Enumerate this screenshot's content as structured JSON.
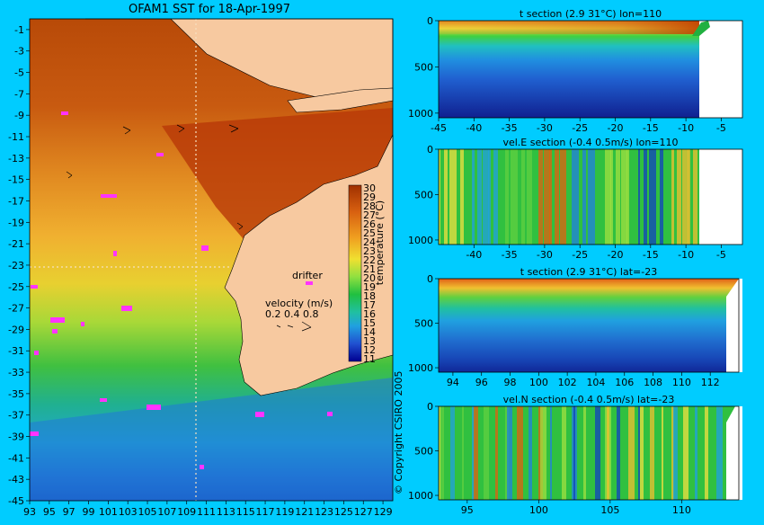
{
  "chart_data": [
    {
      "type": "heatmap",
      "title": "OFAM1 SST for 18-Apr-1997",
      "xticks": [
        "93",
        "95",
        "97",
        "99",
        "101",
        "103",
        "105",
        "107",
        "109",
        "111",
        "113",
        "115",
        "117",
        "119",
        "121",
        "123",
        "125",
        "127",
        "129"
      ],
      "yticks": [
        "-1",
        "-3",
        "-5",
        "-7",
        "-9",
        "-11",
        "-13",
        "-15",
        "-17",
        "-19",
        "-21",
        "-23",
        "-25",
        "-27",
        "-29",
        "-31",
        "-33",
        "-35",
        "-37",
        "-39",
        "-41",
        "-43",
        "-45"
      ],
      "xlim": [
        93,
        130
      ],
      "ylim": [
        -45,
        0
      ],
      "colorbar": {
        "label": "temperature (°C)",
        "ticks": [
          "30",
          "29",
          "28",
          "27",
          "26",
          "25",
          "24",
          "23",
          "22",
          "21",
          "20",
          "19",
          "18",
          "17",
          "16",
          "15",
          "14",
          "13",
          "12",
          "11"
        ],
        "range": [
          11,
          30
        ]
      },
      "section_lines": {
        "lon": 110,
        "lat": -23
      },
      "velocity_legend": {
        "label": "velocity (m/s)",
        "scale": "0.2 0.4 0.8"
      },
      "drifter_label": "drifter",
      "colors": {
        "land": "#f7c9a0",
        "drifter": "#ff33ff",
        "warm": "#c04000",
        "cool": "#0000a0"
      }
    },
    {
      "type": "heatmap",
      "title": "t section (2.9      31°C) lon=110",
      "xticks": [
        "-45",
        "-40",
        "-35",
        "-30",
        "-25",
        "-20",
        "-15",
        "-10",
        "-5"
      ],
      "yticks": [
        "0",
        "500",
        "1000"
      ],
      "xlim": [
        -45,
        -2
      ],
      "ylim": [
        0,
        1050
      ]
    },
    {
      "type": "heatmap",
      "title": "vel.E section (-0.4      0.5m/s) lon=110",
      "xticks": [
        "-40",
        "-35",
        "-30",
        "-25",
        "-20",
        "-15",
        "-10",
        "-5"
      ],
      "yticks": [
        "0",
        "500",
        "1000"
      ],
      "xlim": [
        -45,
        -2
      ],
      "ylim": [
        0,
        1050
      ]
    },
    {
      "type": "heatmap",
      "title": "t section (2.9      31°C) lat=-23",
      "xticks": [
        "94",
        "96",
        "98",
        "100",
        "102",
        "104",
        "106",
        "108",
        "110",
        "112"
      ],
      "yticks": [
        "0",
        "500",
        "1000"
      ],
      "xlim": [
        93,
        114
      ],
      "ylim": [
        0,
        1050
      ]
    },
    {
      "type": "heatmap",
      "title": "vel.N section (-0.4      0.5m/s) lat=-23",
      "xticks": [
        "95",
        "100",
        "105",
        "110"
      ],
      "yticks": [
        "0",
        "500",
        "1000"
      ],
      "xlim": [
        93,
        114
      ],
      "ylim": [
        0,
        1050
      ]
    }
  ],
  "copyright": "© Copyright CSIRO 2005"
}
